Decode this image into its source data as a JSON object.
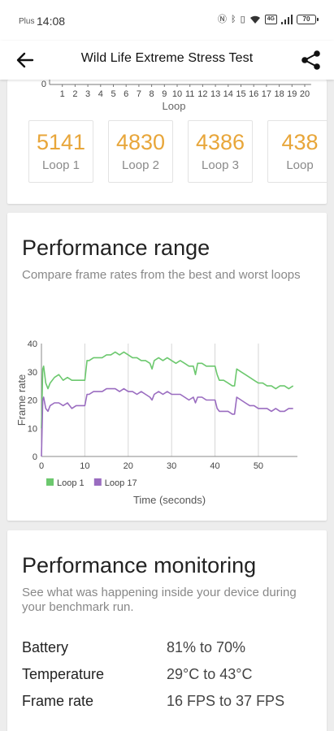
{
  "status_bar": {
    "carrier": "Plus",
    "time": "14:08",
    "battery": "70"
  },
  "app_bar": {
    "title": "Wild Life Extreme Stress Test",
    "back_icon": "arrow-left-icon",
    "share_icon": "share-icon"
  },
  "loop_axis": {
    "zero_label": "0",
    "ticks": [
      "1",
      "2",
      "3",
      "4",
      "5",
      "6",
      "7",
      "8",
      "9",
      "10",
      "11",
      "12",
      "13",
      "14",
      "15",
      "16",
      "17",
      "18",
      "19",
      "20"
    ],
    "xlabel": "Loop"
  },
  "scores": [
    {
      "score": "5141",
      "label": "Loop 1"
    },
    {
      "score": "4830",
      "label": "Loop 2"
    },
    {
      "score": "4386",
      "label": "Loop 3"
    },
    {
      "score": "438",
      "label": "Loop"
    }
  ],
  "performance_range": {
    "title": "Performance range",
    "description": "Compare frame rates from the best and worst loops"
  },
  "chart_data": {
    "type": "line",
    "xlabel": "Time (seconds)",
    "ylabel": "Frame rate",
    "xlim": [
      0,
      59
    ],
    "ylim": [
      0,
      40
    ],
    "x_ticks": [
      0,
      10,
      20,
      30,
      40,
      50
    ],
    "y_ticks": [
      0,
      10,
      20,
      30,
      40
    ],
    "legend_position": "bottom-left",
    "series": [
      {
        "name": "Loop 1",
        "color": "#6cc86e",
        "x": [
          0,
          0.3,
          0.5,
          1,
          1.5,
          2,
          3,
          4,
          5,
          6,
          7,
          8,
          9,
          10,
          10.5,
          11,
          12,
          13,
          14,
          15,
          16,
          17,
          18,
          19,
          20,
          21,
          22,
          23,
          24,
          25,
          25.5,
          26,
          27,
          28,
          29,
          30,
          31,
          32,
          33,
          34,
          35,
          35.5,
          36,
          37,
          38,
          39,
          40,
          40.5,
          41,
          42,
          43,
          44,
          44.5,
          45,
          46,
          47,
          48,
          49,
          50,
          51,
          52,
          53,
          54,
          55,
          56,
          57,
          58
        ],
        "y": [
          10,
          31,
          32,
          26,
          24,
          26,
          28,
          29,
          27,
          28,
          27,
          27,
          27,
          27,
          34,
          34,
          35,
          35,
          35,
          36,
          36,
          37,
          36,
          37,
          36,
          35,
          35,
          34,
          34,
          33,
          31,
          34,
          35,
          34,
          35,
          34,
          33,
          34,
          33,
          32,
          32,
          29,
          33,
          33,
          32,
          32,
          32,
          29,
          27,
          27,
          26,
          25,
          25,
          31,
          30,
          29,
          28,
          27,
          26,
          26,
          25,
          25,
          24,
          25,
          25,
          24,
          25
        ]
      },
      {
        "name": "Loop 17",
        "color": "#9a6cc0",
        "x": [
          0,
          0.3,
          0.5,
          1,
          1.5,
          2,
          3,
          4,
          5,
          6,
          7,
          8,
          9,
          10,
          10.5,
          11,
          12,
          13,
          14,
          15,
          16,
          17,
          18,
          19,
          20,
          21,
          22,
          23,
          24,
          25,
          25.5,
          26,
          27,
          28,
          29,
          30,
          31,
          32,
          33,
          34,
          35,
          35.5,
          36,
          37,
          38,
          39,
          40,
          40.5,
          41,
          42,
          43,
          44,
          44.5,
          45,
          46,
          47,
          48,
          49,
          50,
          51,
          52,
          53,
          54,
          55,
          56,
          57,
          58
        ],
        "y": [
          0,
          20,
          21,
          17,
          16,
          18,
          19,
          19,
          18,
          19,
          17,
          18,
          18,
          18,
          22,
          22,
          23,
          23,
          23,
          24,
          24,
          24,
          23,
          24,
          23,
          23,
          22,
          23,
          22,
          21,
          20,
          22,
          23,
          22,
          23,
          22,
          22,
          22,
          21,
          20,
          21,
          19,
          21,
          21,
          20,
          20,
          20,
          17,
          16,
          16,
          16,
          15,
          15,
          21,
          20,
          19,
          18,
          18,
          17,
          17,
          17,
          16,
          17,
          16,
          16,
          17,
          17
        ]
      }
    ]
  },
  "performance_monitoring": {
    "title": "Performance monitoring",
    "description": "See what was happening inside your device during your benchmark run.",
    "rows": [
      {
        "label": "Battery",
        "value": "81% to 70%"
      },
      {
        "label": "Temperature",
        "value": "29°C to 43°C"
      },
      {
        "label": "Frame rate",
        "value": "16 FPS to 37 FPS"
      }
    ]
  }
}
